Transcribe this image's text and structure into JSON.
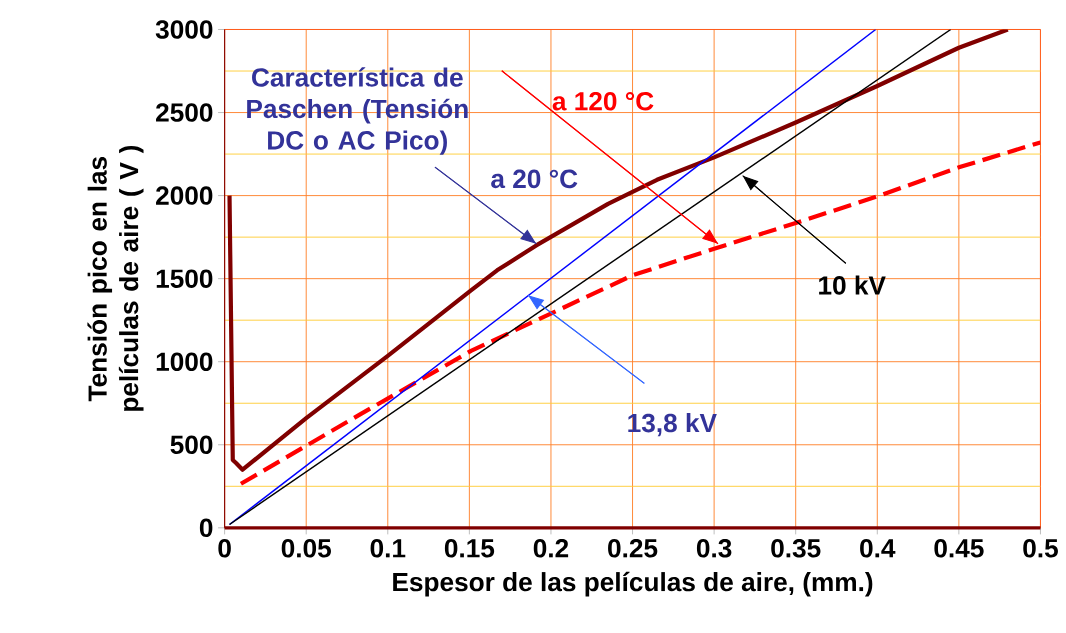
{
  "chart_data": {
    "type": "line",
    "xlabel": "Espesor de las películas de aire,  (mm.)",
    "ylabel": "Tensión pico en las películas de aire  ( V )",
    "xlim": [
      0,
      0.5
    ],
    "ylim": [
      0,
      3000
    ],
    "xticks": [
      0,
      0.05,
      0.1,
      0.15,
      0.2,
      0.25,
      0.3,
      0.35,
      0.4,
      0.45,
      0.5
    ],
    "yticks": [
      0,
      500,
      1000,
      1500,
      2000,
      2500,
      3000
    ],
    "grid": true,
    "marker": "none",
    "series": [
      {
        "color": "#800000",
        "line_style": "solid",
        "x": [
          0.003,
          0.005,
          0.007,
          0.011,
          0.05,
          0.1,
          0.151,
          0.167,
          0.191,
          0.235,
          0.265,
          0.3,
          0.35,
          0.4,
          0.45,
          0.48
        ],
        "values": [
          2000,
          408,
          390,
          350,
          660,
          1035,
          1430,
          1550,
          1700,
          1950,
          2095,
          2230,
          2440,
          2660,
          2890,
          3000
        ]
      },
      {
        "color": "#ff0000",
        "line_style": "dashed",
        "x": [
          0.01,
          0.0825,
          0.151,
          0.25,
          0.3,
          0.35,
          0.4,
          0.45,
          0.5
        ],
        "values": [
          265,
          680,
          1065,
          1520,
          1680,
          1835,
          1995,
          2170,
          2320
        ]
      },
      {
        "color": "#0000ff",
        "line_style": "solid",
        "x": [
          0.003,
          0.399
        ],
        "values": [
          20,
          3000
        ]
      },
      {
        "color": "#000000",
        "line_style": "solid",
        "x": [
          0.003,
          0.445
        ],
        "values": [
          20,
          3000
        ]
      }
    ],
    "annotations": [
      {
        "text": "Característica de Paschen (Tensión DC o AC Pico)",
        "x": 0.191,
        "y": 1710
      },
      "a 20 °C",
      "a 120 °C",
      {
        "text": "13,8 kV",
        "x": 0.186,
        "y": 1400
      },
      {
        "text": "10 kV",
        "x": 0.3175,
        "y": 2120
      }
    ],
    "ref_lines": [
      {
        "axis": "y",
        "value": 250,
        "color": "#ffcc33"
      },
      {
        "axis": "y",
        "value": 750,
        "color": "#ffcc33"
      },
      {
        "axis": "y",
        "value": 1250,
        "color": "#ffcc33"
      },
      {
        "axis": "y",
        "value": 1750,
        "color": "#ffcc33"
      },
      {
        "axis": "y",
        "value": 2250,
        "color": "#ffcc33"
      },
      {
        "axis": "y",
        "value": 2750,
        "color": "#ffcc33"
      }
    ]
  }
}
